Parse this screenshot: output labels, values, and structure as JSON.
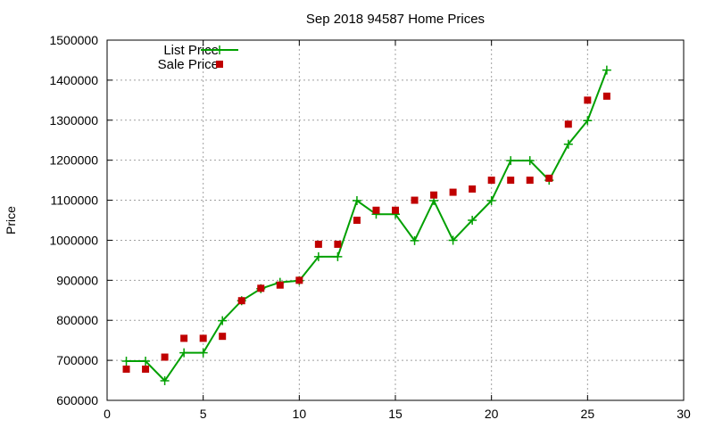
{
  "chart_data": {
    "type": "line",
    "title": "Sep 2018 94587 Home Prices",
    "xlabel": "",
    "ylabel": "Price",
    "xlim": [
      0,
      30
    ],
    "ylim": [
      600000,
      1500000
    ],
    "x_ticks": [
      0,
      5,
      10,
      15,
      20,
      25,
      30
    ],
    "y_ticks": [
      600000,
      700000,
      800000,
      900000,
      1000000,
      1100000,
      1200000,
      1300000,
      1400000,
      1500000
    ],
    "grid": true,
    "legend_position": "top-left",
    "x": [
      1,
      2,
      3,
      4,
      5,
      6,
      7,
      8,
      9,
      10,
      11,
      12,
      13,
      14,
      15,
      16,
      17,
      18,
      19,
      20,
      21,
      22,
      23,
      24,
      25,
      26
    ],
    "series": [
      {
        "name": "List Price",
        "style": "line-plus",
        "color": "#00a000",
        "values": [
          698000,
          698000,
          649000,
          719000,
          719000,
          799000,
          849000,
          879000,
          895000,
          899000,
          959000,
          959000,
          1099000,
          1065000,
          1065000,
          999000,
          1099000,
          1000000,
          1050000,
          1099000,
          1199000,
          1199000,
          1150000,
          1240000,
          1299000,
          1425000
        ]
      },
      {
        "name": "Sale Price",
        "style": "square-points",
        "color": "#c00000",
        "values": [
          678000,
          678000,
          708000,
          755000,
          755000,
          760000,
          849000,
          880000,
          888000,
          900000,
          990000,
          990000,
          1050000,
          1075000,
          1075000,
          1100000,
          1113000,
          1120000,
          1128000,
          1150000,
          1150000,
          1150000,
          1155000,
          1290000,
          1350000,
          1360000
        ]
      }
    ]
  }
}
